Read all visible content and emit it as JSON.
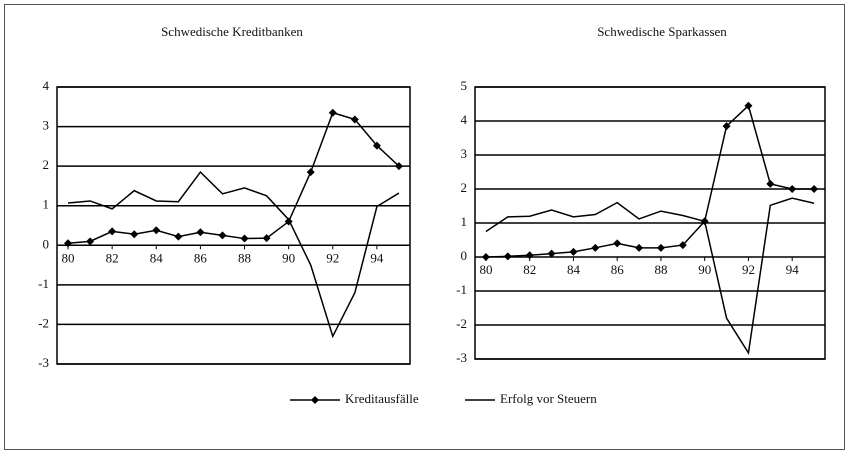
{
  "chart_data": [
    {
      "type": "line",
      "title": "Schwedische Kreditbanken",
      "x": [
        80,
        81,
        82,
        83,
        84,
        85,
        86,
        87,
        88,
        89,
        90,
        91,
        92,
        93,
        94,
        95
      ],
      "xlim": [
        79.5,
        95.5
      ],
      "xticks": [
        80,
        82,
        84,
        86,
        88,
        90,
        92,
        94
      ],
      "ylim": [
        -3,
        4
      ],
      "yticks": [
        -3,
        -2,
        -1,
        0,
        1,
        2,
        3,
        4
      ],
      "grid": true,
      "series": [
        {
          "name": "Kreditausfälle",
          "color": "#000000",
          "marker": "diamond",
          "values": [
            0.05,
            0.1,
            0.35,
            0.28,
            0.38,
            0.22,
            0.33,
            0.25,
            0.17,
            0.18,
            0.6,
            1.85,
            3.35,
            3.18,
            2.52,
            2.0
          ]
        },
        {
          "name": "Erfolg vor Steuern",
          "color": "#000000",
          "marker": "none",
          "values": [
            1.07,
            1.12,
            0.92,
            1.38,
            1.12,
            1.1,
            1.85,
            1.3,
            1.45,
            1.25,
            0.65,
            -0.5,
            -2.3,
            -1.2,
            0.98,
            1.32
          ]
        }
      ]
    },
    {
      "type": "line",
      "title": "Schwedische Sparkassen",
      "x": [
        80,
        81,
        82,
        83,
        84,
        85,
        86,
        87,
        88,
        89,
        90,
        91,
        92,
        93,
        94,
        95
      ],
      "xlim": [
        79.5,
        95.5
      ],
      "xticks": [
        80,
        82,
        84,
        86,
        88,
        90,
        92,
        94
      ],
      "ylim": [
        -3,
        5
      ],
      "yticks": [
        -3,
        -2,
        -1,
        0,
        1,
        2,
        3,
        4,
        5
      ],
      "grid": true,
      "series": [
        {
          "color": "#000000",
          "marker": "diamond",
          "values": [
            0,
            0.02,
            0.05,
            0.1,
            0.15,
            0.27,
            0.4,
            0.27,
            0.27,
            0.35,
            1.05,
            3.85,
            4.45,
            2.15,
            2.0,
            2.0
          ]
        },
        {
          "color": "#000000",
          "marker": "none",
          "values": [
            0.75,
            1.18,
            1.2,
            1.38,
            1.18,
            1.25,
            1.6,
            1.12,
            1.35,
            1.22,
            1.05,
            -1.8,
            -2.82,
            1.52,
            1.73,
            1.58
          ]
        }
      ]
    }
  ]
}
